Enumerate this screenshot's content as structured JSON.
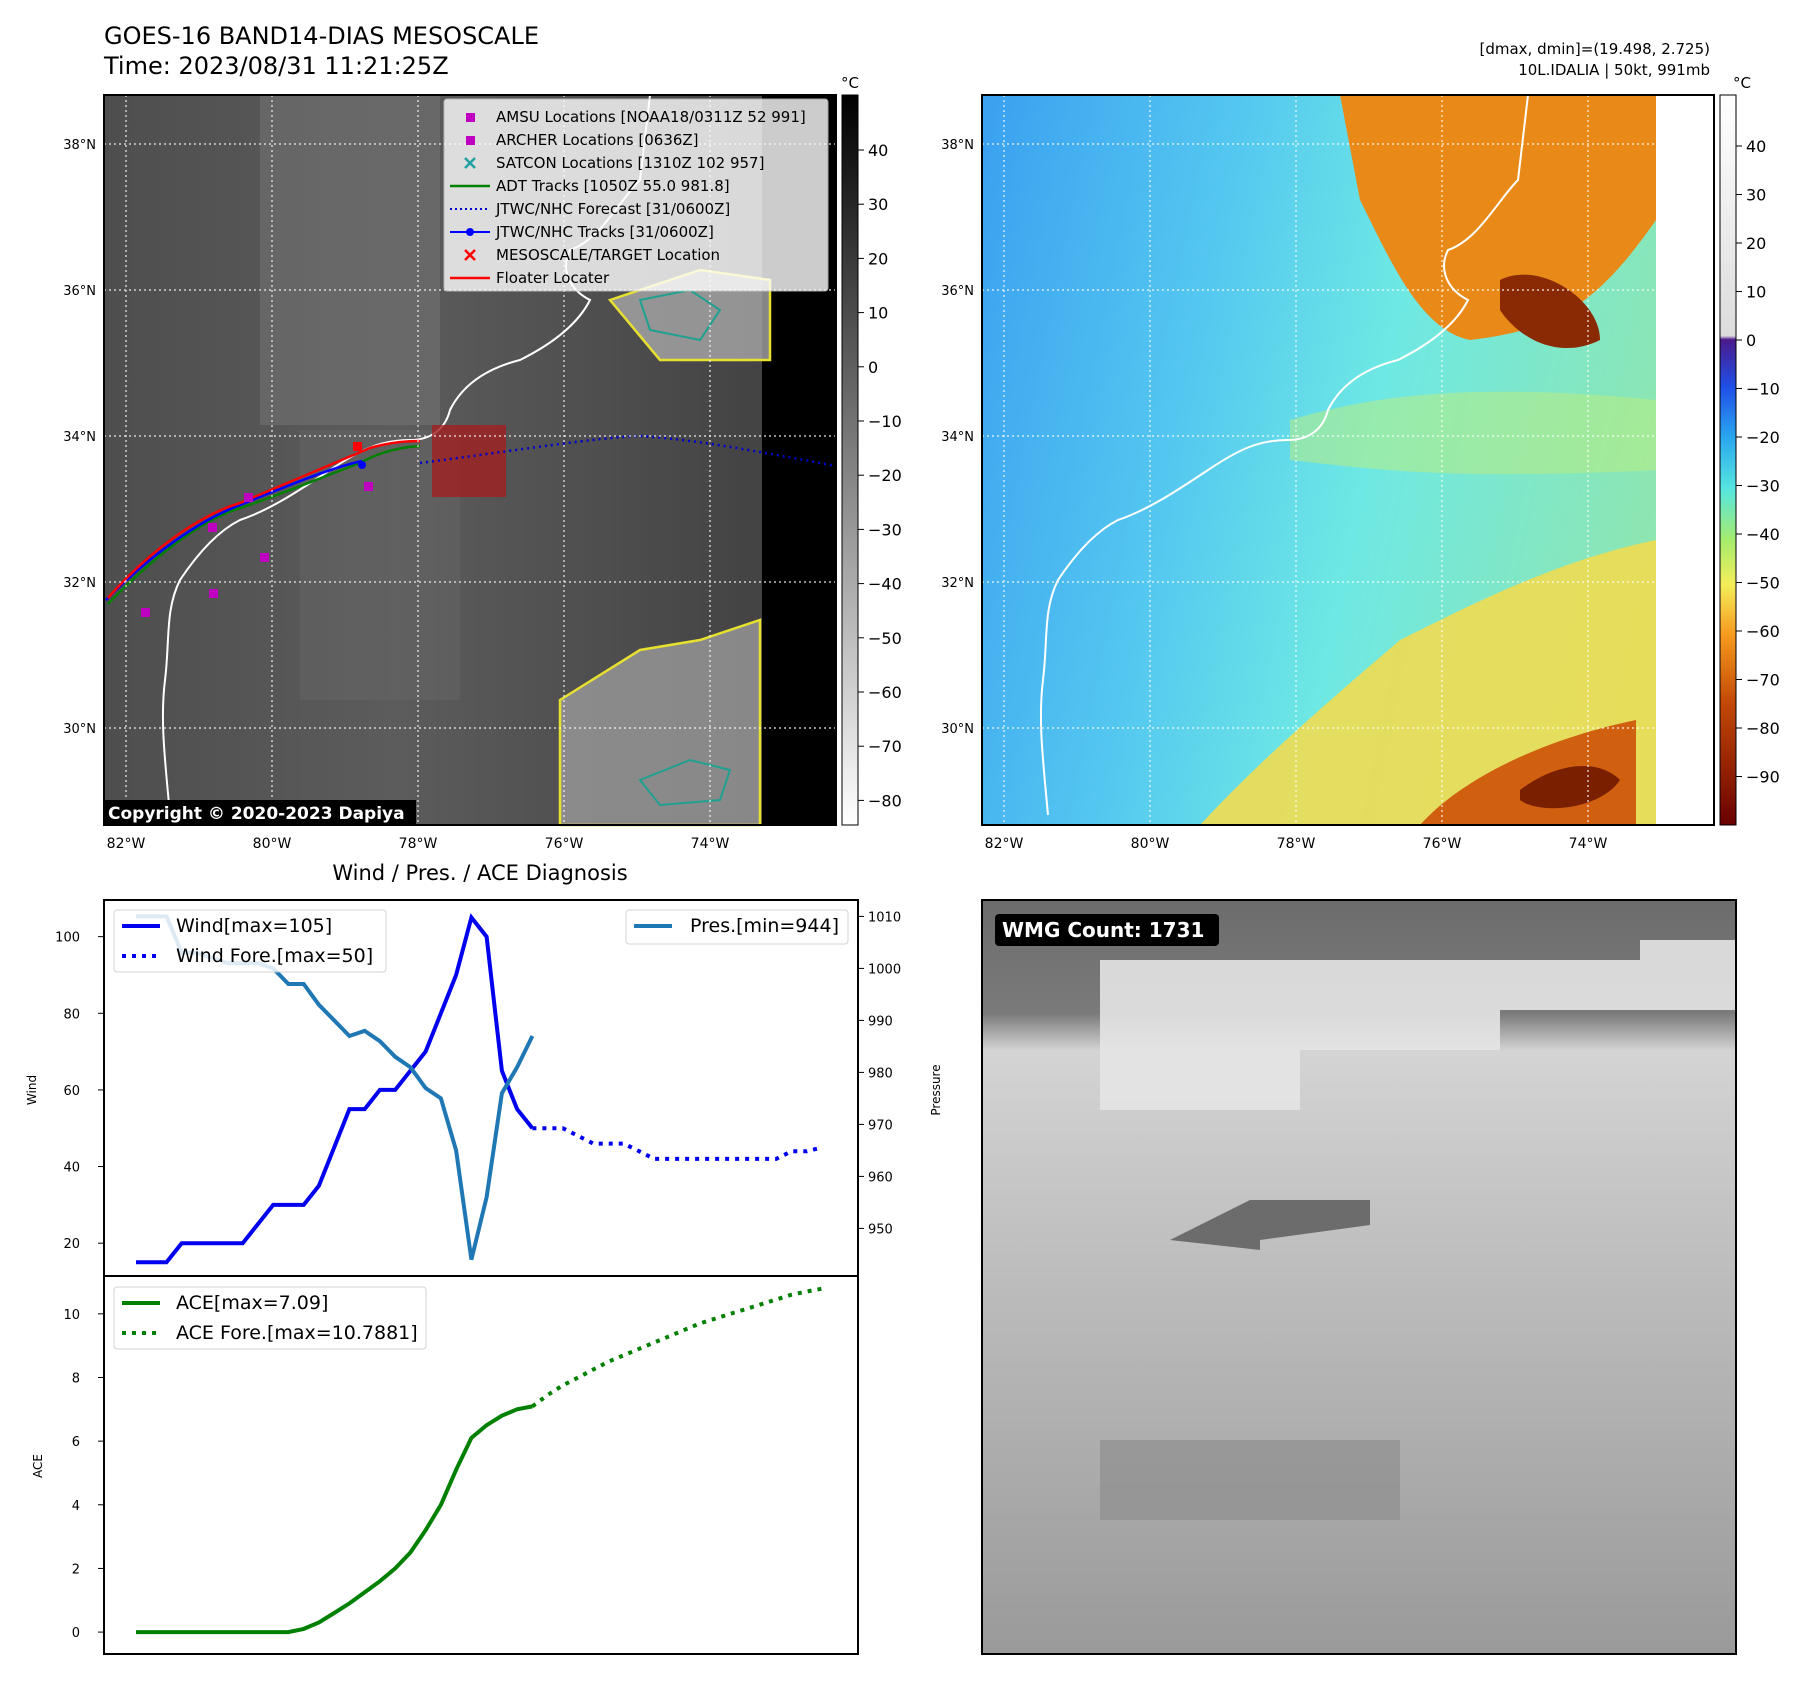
{
  "header": {
    "title": "GOES-16 BAND14-DIAS MESOSCALE",
    "time": "Time: 2023/08/31 11:21:25Z",
    "dmax_line": "[dmax, dmin]=(19.498, 2.725)",
    "storm_line": "10L.IDALIA | 50kt, 991mb"
  },
  "ir_map": {
    "lat_labels": [
      "38°N",
      "36°N",
      "34°N",
      "32°N",
      "30°N"
    ],
    "lon_labels": [
      "82°W",
      "80°W",
      "78°W",
      "76°W",
      "74°W"
    ],
    "copyright": "Copyright © 2020-2023 Dapiya",
    "colorbar_unit": "°C",
    "colorbar_ticks": [
      "40",
      "30",
      "20",
      "10",
      "0",
      "−10",
      "−20",
      "−30",
      "−40",
      "−50",
      "−60",
      "−70",
      "−80"
    ],
    "legend": [
      {
        "label": "AMSU Locations [NOAA18/0311Z 52 991]",
        "color": "#c000c0",
        "marker": "square"
      },
      {
        "label": "ARCHER Locations [0636Z]",
        "color": "#c000c0",
        "marker": "square"
      },
      {
        "label": "SATCON Locations [1310Z 102 957]",
        "color": "#20a0a0",
        "marker": "x"
      },
      {
        "label": "ADT Tracks [1050Z 55.0 981.8]",
        "color": "#008000",
        "marker": "line"
      },
      {
        "label": "JTWC/NHC Forecast [31/0600Z]",
        "color": "#0000cc",
        "marker": "dotted"
      },
      {
        "label": "JTWC/NHC Tracks [31/0600Z]",
        "color": "#0000ff",
        "marker": "line-dot"
      },
      {
        "label": "MESOSCALE/TARGET Location",
        "color": "#ff0000",
        "marker": "x"
      },
      {
        "label": "Floater Locater",
        "color": "#ff0000",
        "marker": "line"
      }
    ]
  },
  "color_map": {
    "lat_labels": [
      "38°N",
      "36°N",
      "34°N",
      "32°N",
      "30°N"
    ],
    "lon_labels": [
      "82°W",
      "80°W",
      "78°W",
      "76°W",
      "74°W"
    ],
    "colorbar_unit": "°C",
    "colorbar_ticks": [
      "40",
      "30",
      "20",
      "10",
      "0",
      "−10",
      "−20",
      "−30",
      "−40",
      "−50",
      "−60",
      "−70",
      "−80",
      "−90"
    ]
  },
  "wind_panel": {
    "title": "Wind / Pres. / ACE Diagnosis",
    "ylabel": "Wind",
    "y2label": "Pressure",
    "legend_wind": "Wind[max=105]",
    "legend_wind_fore": "Wind Fore.[max=50]",
    "legend_pres": "Pres.[min=944]"
  },
  "ace_panel": {
    "ylabel": "ACE",
    "legend_ace": "ACE[max=7.09]",
    "legend_ace_fore": "ACE Fore.[max=10.7881]"
  },
  "wmg": {
    "label": "WMG Count: 1731"
  },
  "chart_data": [
    {
      "type": "line",
      "name": "wind",
      "x_index": [
        0,
        1,
        2,
        3,
        4,
        5,
        6,
        7,
        8,
        9,
        10,
        11,
        12,
        13,
        14,
        15,
        16,
        17,
        18,
        19,
        20,
        21,
        22,
        23,
        24,
        25,
        26,
        27,
        28,
        29,
        30,
        31,
        32,
        33,
        34,
        35,
        36,
        37,
        38,
        39,
        40,
        41,
        42,
        43,
        44,
        45
      ],
      "ylim": [
        13,
        108
      ],
      "yticks": [
        20,
        40,
        60,
        80,
        100
      ],
      "y2lim": [
        942,
        1012
      ],
      "y2ticks": [
        950,
        960,
        970,
        980,
        990,
        1000,
        1010
      ],
      "series": [
        {
          "name": "Wind[max=105]",
          "color": "#0000ee",
          "style": "solid",
          "x": [
            0,
            1,
            2,
            3,
            4,
            5,
            6,
            7,
            8,
            9,
            10,
            11,
            12,
            13,
            14,
            15,
            16,
            17,
            18,
            19,
            20,
            21,
            22,
            23,
            24,
            25,
            26
          ],
          "values": [
            15,
            15,
            15,
            20,
            20,
            20,
            20,
            20,
            25,
            30,
            30,
            30,
            35,
            45,
            55,
            55,
            60,
            60,
            65,
            70,
            80,
            90,
            105,
            100,
            65,
            55,
            50
          ]
        },
        {
          "name": "Wind Fore.[max=50]",
          "color": "#0000ee",
          "style": "dotted",
          "x": [
            26,
            27,
            28,
            29,
            30,
            31,
            32,
            33,
            34,
            35,
            36,
            37,
            38,
            39,
            40,
            41,
            42,
            43,
            44,
            45
          ],
          "values": [
            50,
            50,
            50,
            48,
            46,
            46,
            46,
            44,
            42,
            42,
            42,
            42,
            42,
            42,
            42,
            42,
            42,
            44,
            44,
            45
          ]
        },
        {
          "name": "Pres.[min=944]",
          "color": "#1f77b4",
          "style": "solid",
          "axis": "right",
          "x": [
            0,
            1,
            2,
            3,
            4,
            5,
            6,
            7,
            8,
            9,
            10,
            11,
            12,
            13,
            14,
            15,
            16,
            17,
            18,
            19,
            20,
            21,
            22,
            23,
            24,
            25,
            26
          ],
          "values": [
            1010,
            1010,
            1010,
            1003,
            1003,
            1002,
            1001,
            1001,
            1001,
            1000,
            997,
            997,
            993,
            990,
            987,
            988,
            986,
            983,
            981,
            977,
            975,
            965,
            944,
            956,
            976,
            981,
            987
          ]
        }
      ]
    },
    {
      "type": "line",
      "name": "ace",
      "ylim": [
        -0.5,
        11.0
      ],
      "yticks": [
        0,
        2,
        4,
        6,
        8,
        10
      ],
      "series": [
        {
          "name": "ACE[max=7.09]",
          "color": "#008000",
          "style": "solid",
          "x": [
            0,
            1,
            2,
            3,
            4,
            5,
            6,
            7,
            8,
            9,
            10,
            11,
            12,
            13,
            14,
            15,
            16,
            17,
            18,
            19,
            20,
            21,
            22,
            23,
            24,
            25,
            26
          ],
          "values": [
            0,
            0,
            0,
            0,
            0,
            0,
            0,
            0,
            0,
            0,
            0,
            0.1,
            0.3,
            0.6,
            0.9,
            1.25,
            1.6,
            2.0,
            2.5,
            3.2,
            4.0,
            5.1,
            6.1,
            6.5,
            6.8,
            7.0,
            7.09
          ]
        },
        {
          "name": "ACE Fore.[max=10.7881]",
          "color": "#008000",
          "style": "dotted",
          "x": [
            26,
            27,
            28,
            29,
            30,
            31,
            32,
            33,
            34,
            35,
            36,
            37,
            38,
            39,
            40,
            41,
            42,
            43,
            44,
            45
          ],
          "values": [
            7.09,
            7.45,
            7.75,
            8.0,
            8.25,
            8.5,
            8.7,
            8.9,
            9.1,
            9.3,
            9.5,
            9.7,
            9.85,
            10.0,
            10.15,
            10.3,
            10.45,
            10.6,
            10.7,
            10.79
          ]
        }
      ]
    }
  ]
}
